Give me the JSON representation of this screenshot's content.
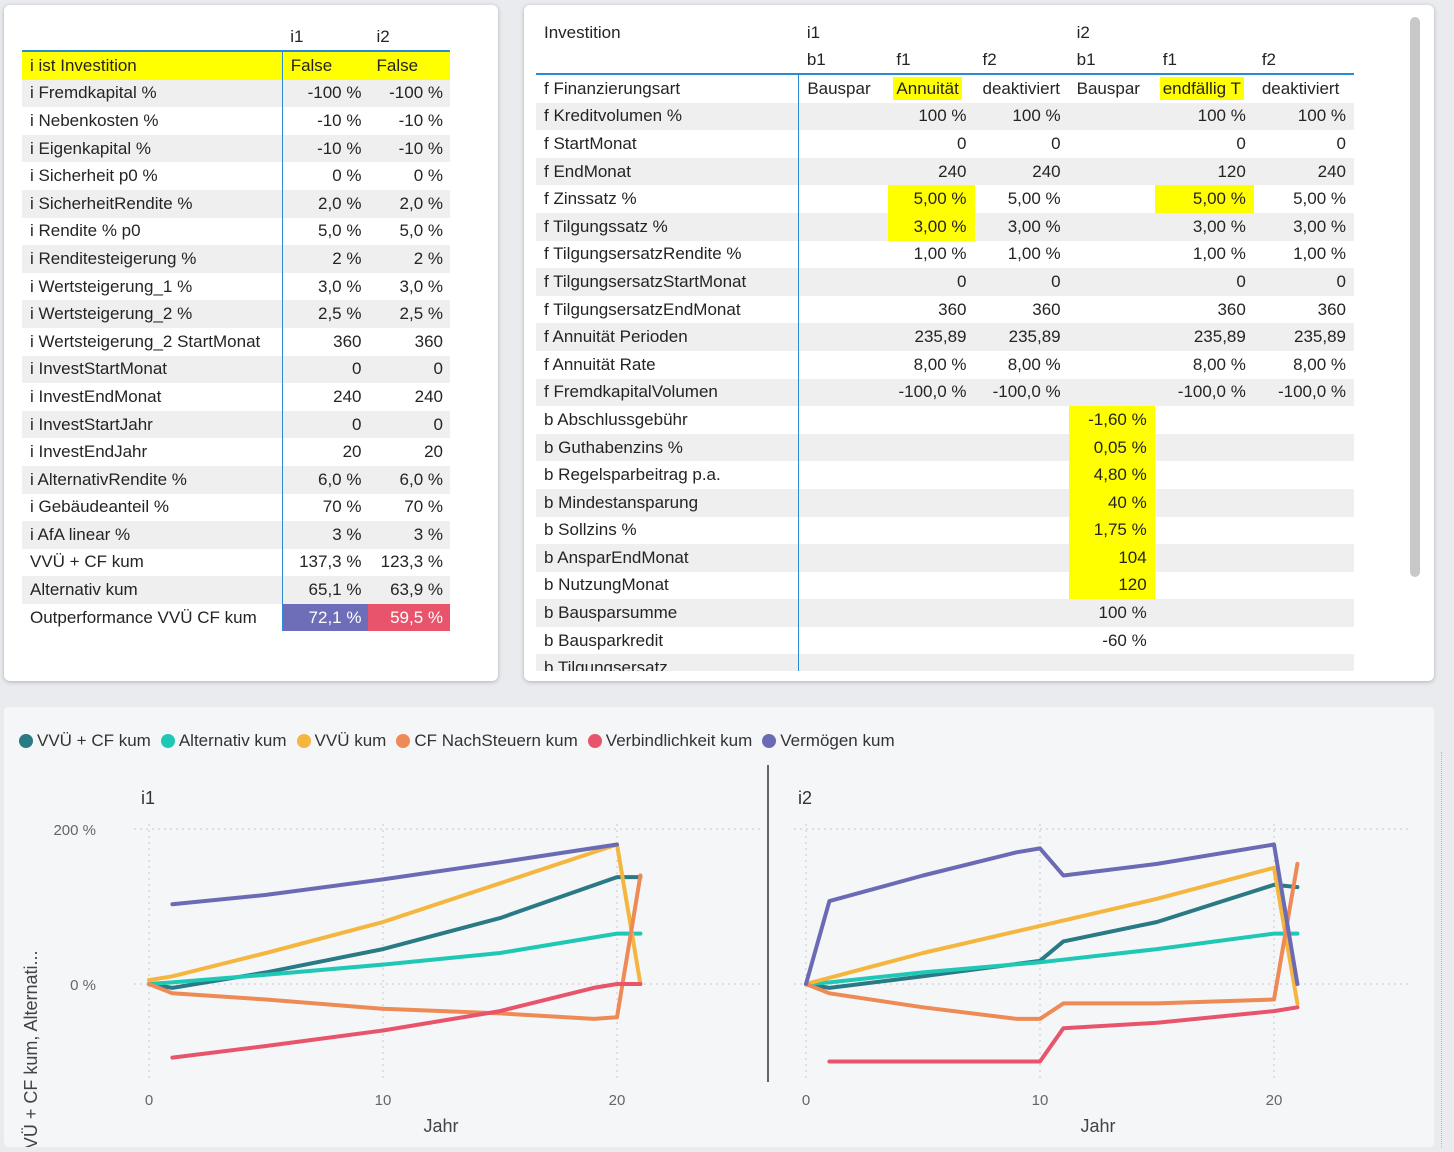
{
  "left_table": {
    "headers": [
      "",
      "i1",
      "i2"
    ],
    "rows": [
      {
        "label": "i ist Investition",
        "v1": "False",
        "v2": "False"
      },
      {
        "label": "i Fremdkapital %",
        "v1": "-100 %",
        "v2": "-100 %"
      },
      {
        "label": "i Nebenkosten %",
        "v1": "-10 %",
        "v2": "-10 %"
      },
      {
        "label": "i Eigenkapital %",
        "v1": "-10 %",
        "v2": "-10 %"
      },
      {
        "label": "i Sicherheit p0 %",
        "v1": "0 %",
        "v2": "0 %"
      },
      {
        "label": "i SicherheitRendite %",
        "v1": "2,0 %",
        "v2": "2,0 %"
      },
      {
        "label": "i Rendite % p0",
        "v1": "5,0 %",
        "v2": "5,0 %"
      },
      {
        "label": "i Renditesteigerung %",
        "v1": "2 %",
        "v2": "2 %"
      },
      {
        "label": "i Wertsteigerung_1 %",
        "v1": "3,0 %",
        "v2": "3,0 %"
      },
      {
        "label": "i Wertsteigerung_2 %",
        "v1": "2,5 %",
        "v2": "2,5 %"
      },
      {
        "label": "i Wertsteigerung_2 StartMonat",
        "v1": "360",
        "v2": "360"
      },
      {
        "label": "i InvestStartMonat",
        "v1": "0",
        "v2": "0"
      },
      {
        "label": "i InvestEndMonat",
        "v1": "240",
        "v2": "240"
      },
      {
        "label": "i InvestStartJahr",
        "v1": "0",
        "v2": "0"
      },
      {
        "label": "i InvestEndJahr",
        "v1": "20",
        "v2": "20"
      },
      {
        "label": "i AlternativRendite %",
        "v1": "6,0 %",
        "v2": "6,0 %"
      },
      {
        "label": "i Gebäudeanteil %",
        "v1": "70 %",
        "v2": "70 %"
      },
      {
        "label": "i AfA linear %",
        "v1": "3 %",
        "v2": "3 %"
      },
      {
        "label": "VVÜ + CF kum",
        "v1": "137,3 %",
        "v2": "123,3 %"
      },
      {
        "label": "Alternativ kum",
        "v1": "65,1 %",
        "v2": "63,9 %"
      },
      {
        "label": "Outperformance VVÜ CF kum",
        "v1": "72,1 %",
        "v2": "59,5 %"
      }
    ]
  },
  "right_table": {
    "header1": [
      "Investition",
      "i1",
      "",
      "",
      "i2",
      "",
      ""
    ],
    "header2": [
      "",
      "b1",
      "f1",
      "f2",
      "b1",
      "f1",
      "f2"
    ],
    "rows": [
      [
        "f Finanzierungsart",
        "Bauspar",
        "Annuität",
        "deaktiviert",
        "Bauspar",
        "endfällig T",
        "deaktiviert"
      ],
      [
        "f Kreditvolumen %",
        "",
        "100 %",
        "100 %",
        "",
        "100 %",
        "100 %"
      ],
      [
        "f StartMonat",
        "",
        "0",
        "0",
        "",
        "0",
        "0"
      ],
      [
        "f EndMonat",
        "",
        "240",
        "240",
        "",
        "120",
        "240"
      ],
      [
        "f Zinssatz %",
        "",
        "5,00 %",
        "5,00 %",
        "",
        "5,00 %",
        "5,00 %"
      ],
      [
        "f Tilgungssatz %",
        "",
        "3,00 %",
        "3,00 %",
        "",
        "3,00 %",
        "3,00 %"
      ],
      [
        "f TilgungsersatzRendite %",
        "",
        "1,00 %",
        "1,00 %",
        "",
        "1,00 %",
        "1,00 %"
      ],
      [
        "f TilgungsersatzStartMonat",
        "",
        "0",
        "0",
        "",
        "0",
        "0"
      ],
      [
        "f TilgungsersatzEndMonat",
        "",
        "360",
        "360",
        "",
        "360",
        "360"
      ],
      [
        "f Annuität Perioden",
        "",
        "235,89",
        "235,89",
        "",
        "235,89",
        "235,89"
      ],
      [
        "f Annuität Rate",
        "",
        "8,00 %",
        "8,00 %",
        "",
        "8,00 %",
        "8,00 %"
      ],
      [
        "f FremdkapitalVolumen",
        "",
        "-100,0 %",
        "-100,0 %",
        "",
        "-100,0 %",
        "-100,0 %"
      ],
      [
        "b Abschlussgebühr",
        "",
        "",
        "",
        "-1,60 %",
        "",
        ""
      ],
      [
        "b Guthabenzins %",
        "",
        "",
        "",
        "0,05 %",
        "",
        ""
      ],
      [
        "b Regelsparbeitrag p.a.",
        "",
        "",
        "",
        "4,80 %",
        "",
        ""
      ],
      [
        "b Mindestansparung",
        "",
        "",
        "",
        "40 %",
        "",
        ""
      ],
      [
        "b Sollzins %",
        "",
        "",
        "",
        "1,75 %",
        "",
        ""
      ],
      [
        "b AnsparEndMonat",
        "",
        "",
        "",
        "104",
        "",
        ""
      ],
      [
        "b NutzungMonat",
        "",
        "",
        "",
        "120",
        "",
        ""
      ],
      [
        "b Bausparsumme",
        "",
        "",
        "",
        "100 %",
        "",
        ""
      ],
      [
        "b Bausparkredit",
        "",
        "",
        "",
        "-60 %",
        "",
        ""
      ],
      [
        "b Tilgungsersatz",
        "",
        "",
        "",
        "",
        "",
        " "
      ]
    ]
  },
  "legend": [
    {
      "name": "VVÜ + CF kum",
      "color": "#2a7a85"
    },
    {
      "name": "Alternativ kum",
      "color": "#1fc8b4"
    },
    {
      "name": "VVÜ kum",
      "color": "#f4b63f"
    },
    {
      "name": "CF NachSteuern kum",
      "color": "#ed8a55"
    },
    {
      "name": "Verbindlichkeit kum",
      "color": "#e8546b"
    },
    {
      "name": "Vermögen kum",
      "color": "#6b6bb5"
    }
  ],
  "chart_data": {
    "type": "line",
    "ylabel": "\"VVÜ + CF kum, Alternati...",
    "xlabel": "Jahr",
    "yticks": [
      "200 %",
      "0 %"
    ],
    "xticks": [
      "0",
      "10",
      "20"
    ],
    "ylim": [
      -130,
      200
    ],
    "xlim": [
      0,
      22
    ],
    "panels": [
      {
        "title": "i1",
        "series": [
          {
            "name": "VVÜ + CF kum",
            "x": [
              0,
              1,
              5,
              10,
              15,
              20,
              21
            ],
            "y": [
              0,
              -5,
              15,
              45,
              85,
              138,
              138
            ]
          },
          {
            "name": "Alternativ kum",
            "x": [
              0,
              1,
              5,
              10,
              15,
              20,
              21
            ],
            "y": [
              0,
              2,
              12,
              25,
              40,
              65,
              65
            ]
          },
          {
            "name": "VVÜ kum",
            "x": [
              0,
              1,
              5,
              10,
              15,
              20,
              21
            ],
            "y": [
              5,
              10,
              40,
              80,
              130,
              180,
              0
            ]
          },
          {
            "name": "CF NachSteuern kum",
            "x": [
              0,
              1,
              5,
              10,
              15,
              19,
              20,
              21
            ],
            "y": [
              0,
              -12,
              -20,
              -32,
              -38,
              -45,
              -43,
              140
            ]
          },
          {
            "name": "Verbindlichkeit kum",
            "x": [
              1,
              5,
              10,
              15,
              19,
              20,
              21
            ],
            "y": [
              -95,
              -80,
              -60,
              -35,
              -5,
              0,
              0
            ]
          },
          {
            "name": "Vermögen kum",
            "x": [
              1,
              5,
              10,
              15,
              20
            ],
            "y": [
              103,
              115,
              135,
              157,
              180
            ]
          }
        ]
      },
      {
        "title": "i2",
        "series": [
          {
            "name": "VVÜ + CF kum",
            "x": [
              0,
              1,
              5,
              10,
              11,
              15,
              20,
              21
            ],
            "y": [
              0,
              -5,
              10,
              30,
              55,
              80,
              128,
              125
            ]
          },
          {
            "name": "Alternativ kum",
            "x": [
              0,
              1,
              5,
              10,
              15,
              20,
              21
            ],
            "y": [
              0,
              2,
              15,
              28,
              45,
              65,
              65
            ]
          },
          {
            "name": "VVÜ kum",
            "x": [
              0,
              1,
              5,
              9,
              10,
              15,
              20,
              21
            ],
            "y": [
              0,
              8,
              40,
              68,
              75,
              110,
              150,
              -25
            ]
          },
          {
            "name": "CF NachSteuern kum",
            "x": [
              0,
              1,
              5,
              9,
              10,
              11,
              15,
              20,
              21
            ],
            "y": [
              0,
              -12,
              -30,
              -45,
              -45,
              -25,
              -25,
              -20,
              155
            ]
          },
          {
            "name": "Verbindlichkeit kum",
            "x": [
              1,
              5,
              10,
              11,
              15,
              20,
              21
            ],
            "y": [
              -100,
              -100,
              -100,
              -57,
              -50,
              -35,
              -30
            ]
          },
          {
            "name": "Vermögen kum",
            "x": [
              0,
              1,
              5,
              9,
              10,
              11,
              15,
              20,
              21
            ],
            "y": [
              0,
              107,
              140,
              170,
              175,
              140,
              155,
              180,
              0
            ]
          }
        ]
      }
    ]
  }
}
